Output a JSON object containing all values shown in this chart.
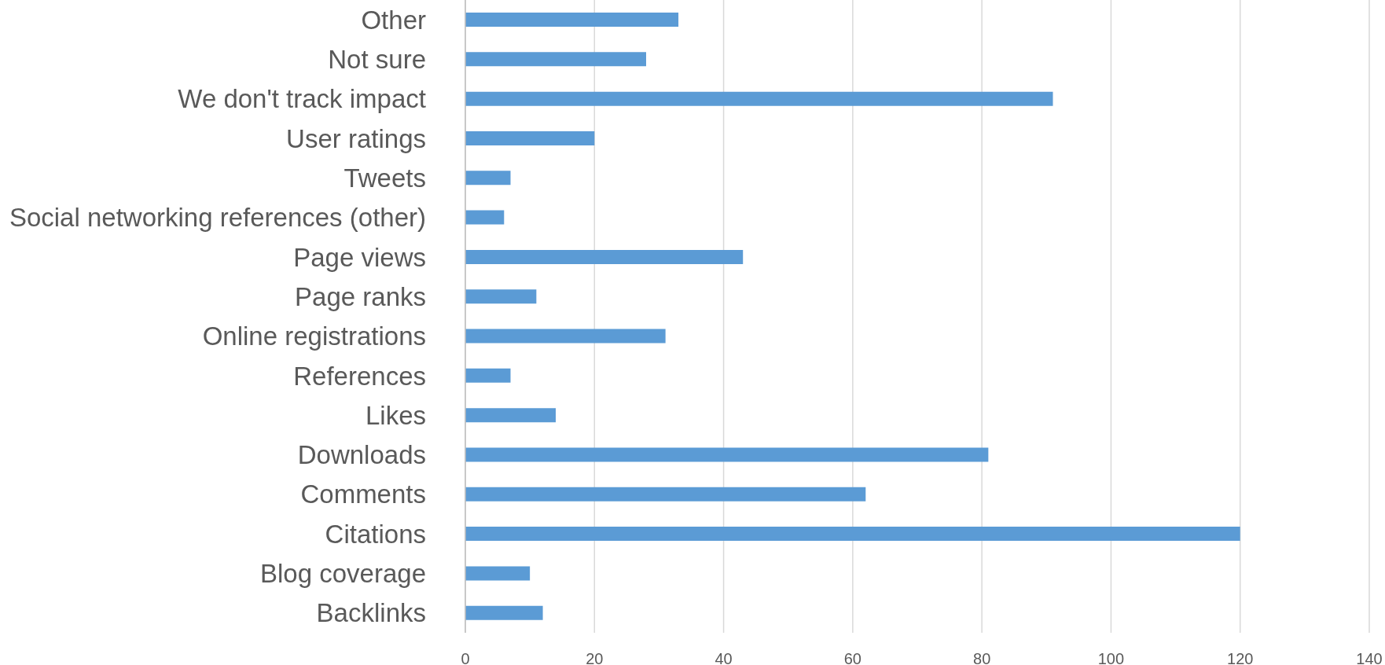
{
  "chart_data": {
    "type": "bar",
    "orientation": "horizontal",
    "categories": [
      "Other",
      "Not sure",
      "We don't track impact",
      "User ratings",
      "Tweets",
      "Social networking references (other)",
      "Page views",
      "Page ranks",
      "Online registrations",
      "References",
      "Likes",
      "Downloads",
      "Comments",
      "Citations",
      "Blog coverage",
      "Backlinks"
    ],
    "values": [
      33,
      28,
      91,
      20,
      7,
      6,
      43,
      11,
      31,
      7,
      14,
      81,
      62,
      120,
      10,
      12
    ],
    "color": "#5b9bd5",
    "xlim": [
      0,
      140
    ],
    "xticks": [
      0,
      20,
      40,
      60,
      80,
      100,
      120,
      140
    ],
    "grid": "x"
  }
}
